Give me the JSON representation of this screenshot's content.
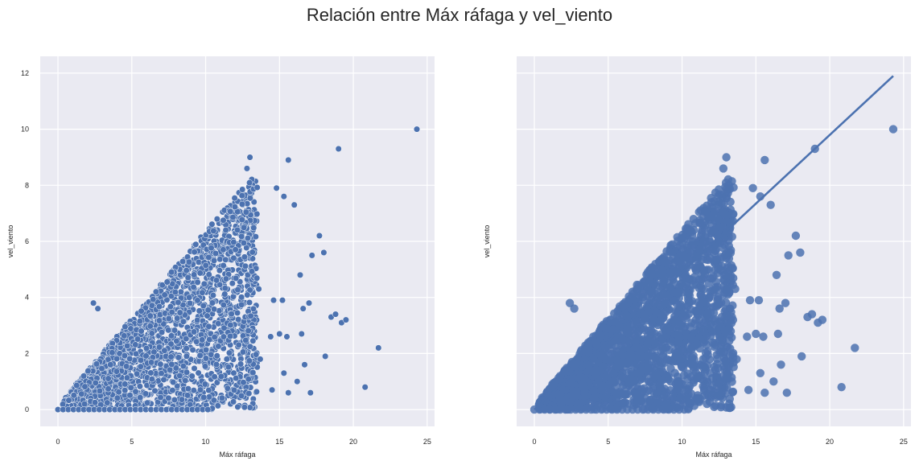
{
  "figure": {
    "title": "Relación entre Máx ráfaga y vel_viento"
  },
  "chart_data": [
    {
      "type": "scatter",
      "xlabel": "Máx ráfaga",
      "ylabel": "vel_viento",
      "xlim": [
        -1.2,
        25.5
      ],
      "ylim": [
        -0.6,
        12.6
      ],
      "x_ticks": [
        "0",
        "5",
        "10",
        "15",
        "20",
        "25"
      ],
      "y_ticks": [
        "0",
        "2",
        "4",
        "6",
        "8",
        "10",
        "12"
      ],
      "grid": true,
      "point_color": "#4c72b0",
      "outliers": [
        [
          24.3,
          10.0
        ],
        [
          19.0,
          9.3
        ],
        [
          15.6,
          8.9
        ],
        [
          13.0,
          9.0
        ],
        [
          12.8,
          8.6
        ],
        [
          17.7,
          6.2
        ],
        [
          18.0,
          5.6
        ],
        [
          17.2,
          5.5
        ],
        [
          16.0,
          7.3
        ],
        [
          15.3,
          7.6
        ],
        [
          14.8,
          7.9
        ],
        [
          2.4,
          3.8
        ],
        [
          2.7,
          3.6
        ],
        [
          16.4,
          4.8
        ],
        [
          17.0,
          3.8
        ],
        [
          16.6,
          3.6
        ],
        [
          18.5,
          3.3
        ],
        [
          18.8,
          3.4
        ],
        [
          19.2,
          3.1
        ],
        [
          19.5,
          3.2
        ],
        [
          16.5,
          2.7
        ],
        [
          15.5,
          2.6
        ],
        [
          15.0,
          2.7
        ],
        [
          21.7,
          2.2
        ],
        [
          18.1,
          1.9
        ],
        [
          16.7,
          1.6
        ],
        [
          15.3,
          1.3
        ],
        [
          20.8,
          0.8
        ],
        [
          16.2,
          1.0
        ],
        [
          15.6,
          0.6
        ],
        [
          14.5,
          0.7
        ],
        [
          17.1,
          0.6
        ],
        [
          14.6,
          3.9
        ],
        [
          15.2,
          3.9
        ],
        [
          14.4,
          2.6
        ],
        [
          13.7,
          1.8
        ],
        [
          13.6,
          4.3
        ]
      ]
    },
    {
      "type": "scatter",
      "xlabel": "Máx ráfaga",
      "ylabel": "vel_viento",
      "xlim": [
        -1.2,
        25.5
      ],
      "ylim": [
        -0.6,
        12.6
      ],
      "x_ticks": [
        "0",
        "5",
        "10",
        "15",
        "20",
        "25"
      ],
      "grid": true,
      "point_color": "#4c72b0",
      "regression_line": {
        "x": [
          0,
          24.3
        ],
        "y": [
          0,
          11.9
        ]
      },
      "outliers": [
        [
          24.3,
          10.0
        ],
        [
          19.0,
          9.3
        ],
        [
          15.6,
          8.9
        ],
        [
          13.0,
          9.0
        ],
        [
          12.8,
          8.6
        ],
        [
          17.7,
          6.2
        ],
        [
          18.0,
          5.6
        ],
        [
          17.2,
          5.5
        ],
        [
          16.0,
          7.3
        ],
        [
          15.3,
          7.6
        ],
        [
          14.8,
          7.9
        ],
        [
          2.4,
          3.8
        ],
        [
          2.7,
          3.6
        ],
        [
          16.4,
          4.8
        ],
        [
          17.0,
          3.8
        ],
        [
          16.6,
          3.6
        ],
        [
          18.5,
          3.3
        ],
        [
          18.8,
          3.4
        ],
        [
          19.2,
          3.1
        ],
        [
          19.5,
          3.2
        ],
        [
          16.5,
          2.7
        ],
        [
          15.5,
          2.6
        ],
        [
          15.0,
          2.7
        ],
        [
          21.7,
          2.2
        ],
        [
          18.1,
          1.9
        ],
        [
          16.7,
          1.6
        ],
        [
          15.3,
          1.3
        ],
        [
          20.8,
          0.8
        ],
        [
          16.2,
          1.0
        ],
        [
          15.6,
          0.6
        ],
        [
          14.5,
          0.7
        ],
        [
          17.1,
          0.6
        ],
        [
          14.6,
          3.9
        ],
        [
          15.2,
          3.9
        ],
        [
          14.4,
          2.6
        ],
        [
          13.7,
          1.8
        ],
        [
          13.6,
          4.3
        ]
      ]
    }
  ]
}
